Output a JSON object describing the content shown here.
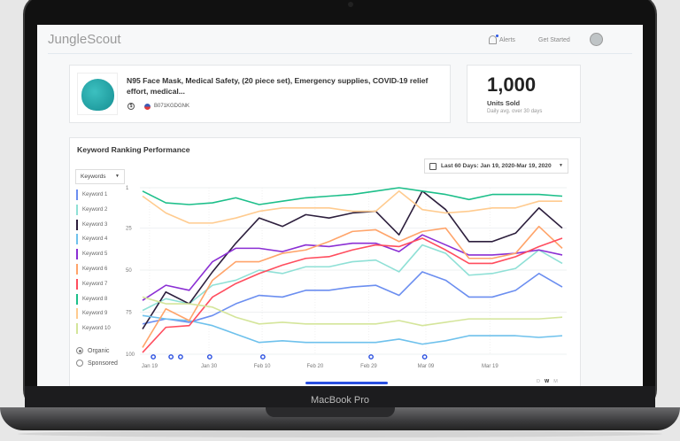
{
  "device_label": "MacBook Pro",
  "header": {
    "logo": "JungleScout",
    "alerts": "Alerts",
    "get_started": "Get Started"
  },
  "product": {
    "title": "N95 Face Mask, Medical Safety, (20 piece set), Emergency supplies, COVID-19 relief effort, medical...",
    "asin": "B071KGDGNK"
  },
  "units": {
    "value": "1,000",
    "label": "Units Sold",
    "sub": "Daily avg. over 30 days"
  },
  "chart_card": {
    "title": "Keyword Ranking Performance",
    "dropdown": "Keywords",
    "date_range": "Last 60 Days: Jan 19, 2020-Mar 19, 2020",
    "radios": [
      {
        "label": "Organic",
        "selected": true
      },
      {
        "label": "Sponsored",
        "selected": false
      }
    ],
    "granularity": [
      "D",
      "W",
      "M"
    ],
    "granularity_selected": "W"
  },
  "chart_data": {
    "type": "line",
    "y_reversed": true,
    "ylim": [
      1,
      100
    ],
    "yticks": [
      "1",
      "25",
      "50",
      "75",
      "100"
    ],
    "xticks": [
      {
        "label": "Jan 19",
        "x": 0.3
      },
      {
        "label": "Jan 30",
        "x": 2.85
      },
      {
        "label": "Feb 10",
        "x": 5.13
      },
      {
        "label": "Feb 20",
        "x": 7.4
      },
      {
        "label": "Feb 29",
        "x": 9.7
      },
      {
        "label": "Mar 09",
        "x": 12.15
      },
      {
        "label": "Mar 19",
        "x": 14.9
      }
    ],
    "grid": true,
    "legend": "left",
    "markers_x": [
      0.46,
      1.22,
      1.63,
      2.88,
      5.16,
      9.8,
      12.1
    ],
    "marker_color": "#2a4fe0",
    "series": [
      {
        "name": "Keyword 1",
        "color": "#6b8ef0",
        "values": [
          82,
          79,
          81,
          77,
          70,
          65,
          66,
          62,
          62,
          60,
          59,
          65,
          51,
          56,
          66,
          66,
          62,
          52,
          60
        ]
      },
      {
        "name": "Keyword 2",
        "color": "#8fe0d6",
        "values": [
          74,
          67,
          70,
          59,
          56,
          50,
          52,
          48,
          48,
          45,
          44,
          51,
          35,
          40,
          53,
          52,
          49,
          38,
          46
        ]
      },
      {
        "name": "Keyword 3",
        "color": "#2d1f3d",
        "values": [
          85,
          63,
          70,
          51,
          34,
          19,
          24,
          17,
          19,
          16,
          15,
          29,
          3,
          14,
          33,
          33,
          28,
          13,
          25
        ]
      },
      {
        "name": "Keyword 4",
        "color": "#6ec1ec",
        "values": [
          77,
          79,
          80,
          83,
          88,
          93,
          92,
          93,
          93,
          93,
          93,
          91,
          94,
          92,
          89,
          89,
          89,
          90,
          89
        ]
      },
      {
        "name": "Keyword 5",
        "color": "#8b2fd4",
        "values": [
          68,
          59,
          62,
          45,
          37,
          37,
          39,
          35,
          36,
          34,
          34,
          39,
          29,
          35,
          41,
          41,
          40,
          38,
          41
        ]
      },
      {
        "name": "Keyword 6",
        "color": "#ffa46a",
        "values": [
          96,
          73,
          80,
          56,
          45,
          45,
          40,
          38,
          33,
          27,
          26,
          33,
          27,
          25,
          43,
          43,
          40,
          24,
          37
        ]
      },
      {
        "name": "Keyword 7",
        "color": "#ff4d5e",
        "values": [
          99,
          84,
          83,
          66,
          58,
          52,
          47,
          43,
          42,
          38,
          35,
          36,
          31,
          38,
          46,
          46,
          42,
          36,
          31
        ]
      },
      {
        "name": "Keyword 8",
        "color": "#1dbf8a",
        "values": [
          3,
          10,
          11,
          10,
          7,
          11,
          9,
          7,
          6,
          5,
          3,
          1,
          3,
          5,
          8,
          5,
          5,
          5,
          6
        ]
      },
      {
        "name": "Keyword 9",
        "color": "#ffcb8f",
        "values": [
          6,
          16,
          22,
          22,
          19,
          15,
          13,
          13,
          13,
          15,
          15,
          3,
          14,
          16,
          15,
          13,
          13,
          9,
          9
        ]
      },
      {
        "name": "Keyword 10",
        "color": "#d4e59a",
        "values": [
          66,
          70,
          70,
          72,
          78,
          82,
          81,
          82,
          82,
          82,
          82,
          80,
          83,
          81,
          79,
          79,
          79,
          79,
          78
        ]
      }
    ]
  }
}
